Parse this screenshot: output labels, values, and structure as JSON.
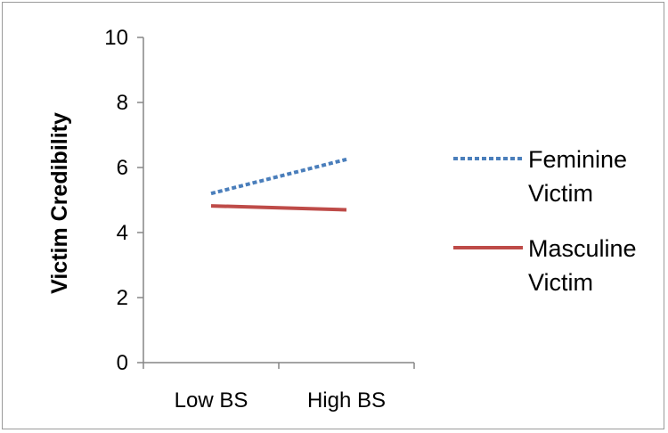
{
  "chart_data": {
    "type": "line",
    "title": "",
    "xlabel": "",
    "ylabel": "Victim Credibility",
    "categories": [
      "Low BS",
      "High BS"
    ],
    "ylim": [
      0,
      10
    ],
    "yticks": [
      "0",
      "2",
      "4",
      "6",
      "8",
      "10"
    ],
    "grid": false,
    "legend_position": "right",
    "series": [
      {
        "name_lines": [
          "Feminine",
          "Victim"
        ],
        "values": [
          5.2,
          6.25
        ],
        "color": "#4a7ebb",
        "style": "dotted"
      },
      {
        "name_lines": [
          "Masculine",
          "Victim"
        ],
        "values": [
          4.82,
          4.7
        ],
        "color": "#be4b48",
        "style": "solid"
      }
    ]
  }
}
